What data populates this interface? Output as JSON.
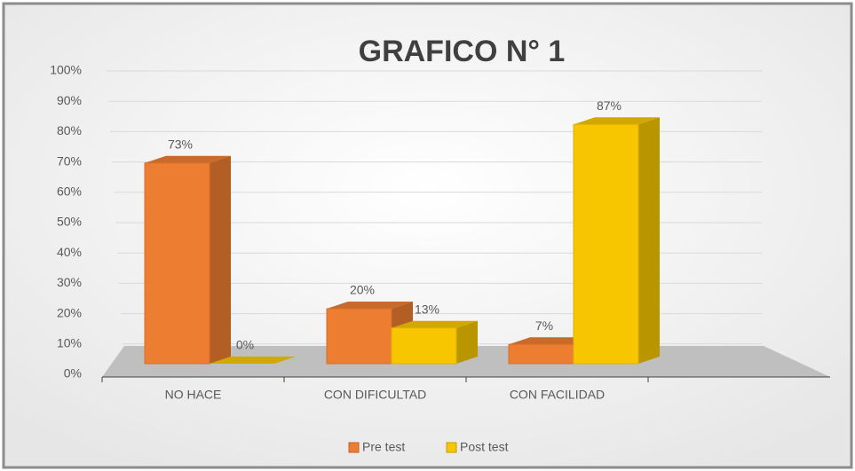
{
  "chart_data": {
    "type": "bar3d",
    "title": "GRAFICO N° 1",
    "categories": [
      "NO HACE",
      "CON DIFICULTAD",
      "CON FACILIDAD",
      null
    ],
    "series": [
      {
        "name": "Pre test",
        "color": "#ed7d31",
        "values": [
          73,
          20,
          7,
          null
        ],
        "value_labels": [
          "73%",
          "20%",
          "7%",
          null
        ]
      },
      {
        "name": "Post test",
        "color": "#f7c600",
        "values": [
          0,
          13,
          87,
          null
        ],
        "value_labels": [
          "0%",
          "13%",
          "87%",
          null
        ]
      }
    ],
    "ylim": [
      0,
      100
    ],
    "yticks": [
      {
        "value": 0,
        "label": "0%"
      },
      {
        "value": 10,
        "label": "10%"
      },
      {
        "value": 20,
        "label": "20%"
      },
      {
        "value": 30,
        "label": "30%"
      },
      {
        "value": 40,
        "label": "40%"
      },
      {
        "value": 50,
        "label": "50%"
      },
      {
        "value": 60,
        "label": "60%"
      },
      {
        "value": 70,
        "label": "70%"
      },
      {
        "value": 80,
        "label": "80%"
      },
      {
        "value": 90,
        "label": "90%"
      },
      {
        "value": 100,
        "label": "100%"
      }
    ],
    "grid": true
  }
}
